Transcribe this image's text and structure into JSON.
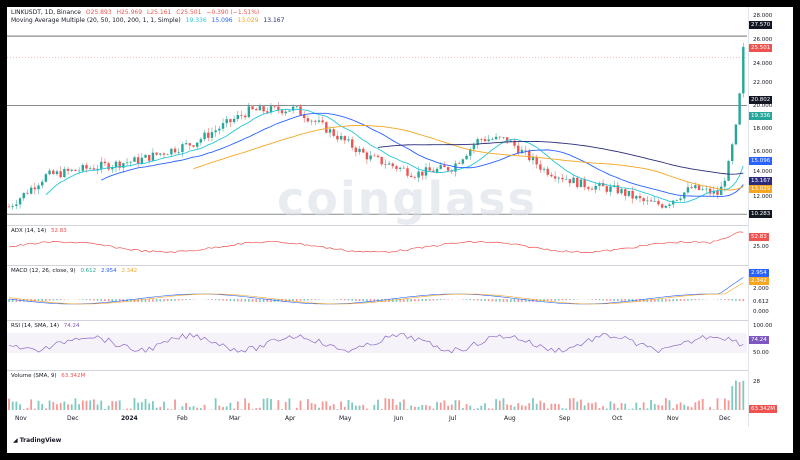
{
  "header": {
    "symbol": "LINKUSDT, 1D, Binance",
    "o": "O25.893",
    "h": "H25.969",
    "l": "L25.161",
    "c": "C25.501",
    "chg": "−0.390 (−1.51%)",
    "ma_label": "Moving Average Multiple (20, 50, 100, 200, 1, 1, Simple)",
    "ma_vals": [
      "19.336",
      "15.096",
      "13.029",
      "13.167"
    ]
  },
  "price_axis": {
    "ticks": [
      "28.000",
      "26.000",
      "24.000",
      "22.000",
      "20.000",
      "18.000",
      "16.000",
      "14.000",
      "12.000"
    ],
    "tags": [
      {
        "v": "27.570",
        "c": "#131722"
      },
      {
        "v": "25.501",
        "c": "#ef5350"
      },
      {
        "v": "20.802",
        "c": "#131722"
      },
      {
        "v": "19.336",
        "c": "#26a69a"
      },
      {
        "v": "15.096",
        "c": "#2962ff"
      },
      {
        "v": "13.167",
        "c": "#2b2b7a"
      },
      {
        "v": "13.029",
        "c": "#f5a623"
      },
      {
        "v": "10.283",
        "c": "#131722"
      }
    ]
  },
  "adx": {
    "label": "ADX (14, 14)",
    "value": "52.83",
    "ticks": [
      "25.00"
    ]
  },
  "macd": {
    "label": "MACD (12, 26, close, 9)",
    "v1": "0.612",
    "v2": "2.954",
    "v3": "2.342",
    "ticks": [
      "2.000",
      "0.000"
    ]
  },
  "rsi": {
    "label": "RSI (14, SMA, 14)",
    "value": "74.24",
    "ticks": [
      "100.00",
      "50.00"
    ]
  },
  "volume": {
    "label": "Volume (SMA, 9)",
    "value": "63.342M",
    "ticks": [
      "28"
    ]
  },
  "x_axis": [
    "Nov",
    "Dec",
    "2024",
    "Feb",
    "Mar",
    "Apr",
    "May",
    "Jun",
    "Jul",
    "Aug",
    "Sep",
    "Oct",
    "Nov",
    "Dec"
  ],
  "logo": "TradingView",
  "watermark": "coinglass",
  "colors": {
    "up": "#26a69a",
    "down": "#ef5350",
    "ma20": "#26c6da",
    "ma50": "#2962ff",
    "ma100": "#f5a623",
    "ma200": "#2b2b7a",
    "adx": "#ef5350"
  }
}
